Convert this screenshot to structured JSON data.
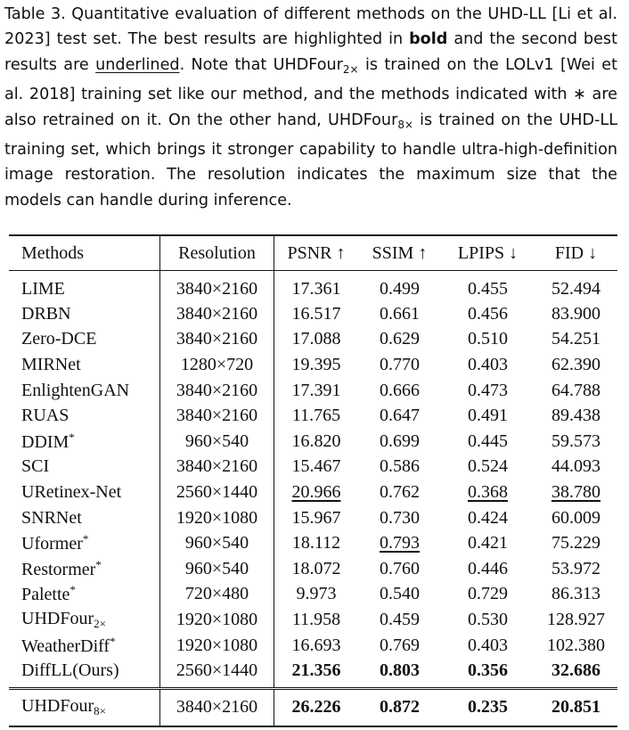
{
  "caption": {
    "segments": [
      {
        "text": "Table 3.  Quantitative evaluation of different methods on the UHD-LL [Li et al. 2023] test set. The best results are highlighted in "
      },
      {
        "text": "bold",
        "format": "bold"
      },
      {
        "text": " and the second best results are "
      },
      {
        "text": "underlined",
        "format": "underline"
      },
      {
        "text": ". Note that UHDFour"
      },
      {
        "text": "2×",
        "format": "subscript"
      },
      {
        "text": " is trained on the LOLv1 [Wei et al. 2018] training set like our method, and the methods indicated with ∗ are also retrained on it. On the other hand, UHDFour"
      },
      {
        "text": "8×",
        "format": "subscript"
      },
      {
        "text": " is trained on the UHD-LL training set, which brings it stronger capability to handle ultra-high-definition image restoration. The resolution indicates the maximum size that the models can handle during inference."
      }
    ]
  },
  "table": {
    "header": [
      "Methods",
      "Resolution",
      "PSNR ↑",
      "SSIM ↑",
      "LPIPS ↓",
      "FID ↓"
    ],
    "rows": [
      [
        "LIME",
        "3840×2160",
        "17.361",
        "0.499",
        "0.455",
        "52.494"
      ],
      [
        "DRBN",
        "3840×2160",
        "16.517",
        "0.661",
        "0.456",
        "83.900"
      ],
      [
        "Zero-DCE",
        "3840×2160",
        "17.088",
        "0.629",
        "0.510",
        "54.251"
      ],
      [
        "MIRNet",
        "1280×720",
        "19.395",
        "0.770",
        "0.403",
        "62.390"
      ],
      [
        "EnlightenGAN",
        "3840×2160",
        "17.391",
        "0.666",
        "0.473",
        "64.788"
      ],
      [
        "RUAS",
        "3840×2160",
        "11.765",
        "0.647",
        "0.491",
        "89.438"
      ],
      [
        {
          "text": "DDIM",
          "sup": "*"
        },
        "960×540",
        "16.820",
        "0.699",
        "0.445",
        "59.573"
      ],
      [
        "SCI",
        "3840×2160",
        "15.467",
        "0.586",
        "0.524",
        "44.093"
      ],
      [
        "URetinex-Net",
        "2560×1440",
        {
          "text": "20.966",
          "underline": true
        },
        "0.762",
        {
          "text": "0.368",
          "underline": true
        },
        {
          "text": "38.780",
          "underline": true
        }
      ],
      [
        "SNRNet",
        "1920×1080",
        "15.967",
        "0.730",
        "0.424",
        "60.009"
      ],
      [
        {
          "text": "Uformer",
          "sup": "*"
        },
        "960×540",
        "18.112",
        {
          "text": "0.793",
          "underline": true
        },
        "0.421",
        "75.229"
      ],
      [
        {
          "text": "Restormer",
          "sup": "*"
        },
        "960×540",
        "18.072",
        "0.760",
        "0.446",
        "53.972"
      ],
      [
        {
          "text": "Palette",
          "sup": "*"
        },
        "720×480",
        "9.973",
        "0.540",
        "0.729",
        "86.313"
      ],
      [
        {
          "text": "UHDFour",
          "sub": "2×"
        },
        "1920×1080",
        "11.958",
        "0.459",
        "0.530",
        "128.927"
      ],
      [
        {
          "text": "WeatherDiff",
          "sup": "*"
        },
        "1920×1080",
        "16.693",
        "0.769",
        "0.403",
        "102.380"
      ],
      [
        "DiffLL(Ours)",
        "2560×1440",
        {
          "text": "21.356",
          "bold": true
        },
        {
          "text": "0.803",
          "bold": true
        },
        {
          "text": "0.356",
          "bold": true
        },
        {
          "text": "32.686",
          "bold": true
        }
      ]
    ],
    "bottom_rows": [
      [
        {
          "text": "UHDFour",
          "sub": "8×"
        },
        "3840×2160",
        {
          "text": "26.226",
          "bold": true
        },
        {
          "text": "0.872",
          "bold": true
        },
        {
          "text": "0.235",
          "bold": true
        },
        {
          "text": "20.851",
          "bold": true
        }
      ]
    ]
  }
}
